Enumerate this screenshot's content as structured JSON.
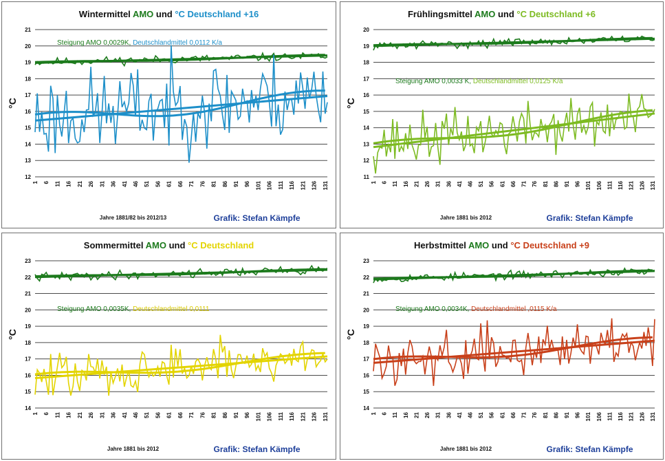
{
  "chart_data": [
    {
      "type": "line",
      "title_parts": [
        {
          "text": "Wintermittel ",
          "color": "#111111"
        },
        {
          "text": "AMO",
          "color": "#1c7a1c"
        },
        {
          "text": " und ",
          "color": "#111111"
        },
        {
          "text": "°C Deutschland +16",
          "color": "#1d8fc9"
        }
      ],
      "annotation_parts": [
        {
          "text": "Steigung AMO 0,0029K, ",
          "color": "#1c7a1c"
        },
        {
          "text": "Deutschlandmittel 0,0112 K/a",
          "color": "#1d8fc9"
        }
      ],
      "ylabel": "°C",
      "xlabel": "Jahre 1881/82 bis 2012/13",
      "credit": "Grafik: Stefan Kämpfe",
      "ylim": [
        12,
        21
      ],
      "yticks": [
        "12",
        "13",
        "14",
        "15",
        "16",
        "17",
        "18",
        "19",
        "20",
        "21"
      ],
      "xticks": [
        "1",
        "6",
        "11",
        "16",
        "21",
        "26",
        "31",
        "36",
        "41",
        "46",
        "51",
        "56",
        "61",
        "66",
        "71",
        "76",
        "81",
        "86",
        "91",
        "96",
        "101",
        "106",
        "111",
        "116",
        "121",
        "126",
        "131"
      ],
      "n": 132,
      "series": [
        {
          "role": "amo",
          "color": "#1c7a1c",
          "base": 19.0,
          "slope": 0.0029,
          "noise": 0.12,
          "seed": 11,
          "smooth_amp": 0.05
        },
        {
          "role": "de",
          "color": "#1d8fc9",
          "base": 15.6,
          "slope": 0.0112,
          "noise": 1.35,
          "seed": 23,
          "smooth_amp": 0.4
        }
      ]
    },
    {
      "type": "line",
      "title_parts": [
        {
          "text": "Frühlingsmittel ",
          "color": "#111111"
        },
        {
          "text": "AMO",
          "color": "#1c7a1c"
        },
        {
          "text": " und ",
          "color": "#111111"
        },
        {
          "text": "°C Deutschland +6",
          "color": "#7dbb22"
        }
      ],
      "annotation_parts": [
        {
          "text": "Steigung AMO 0,0033 K, ",
          "color": "#1c7a1c"
        },
        {
          "text": "Deutschlandmittel 0,0125 K/a",
          "color": "#7dbb22"
        }
      ],
      "ylabel": "°C",
      "xlabel": "Jahre 1881 bis 2012",
      "credit": "Grafik: Stefan Kämpfe",
      "ylim": [
        11,
        20
      ],
      "yticks": [
        "11",
        "12",
        "13",
        "14",
        "15",
        "16",
        "17",
        "18",
        "19",
        "20"
      ],
      "xticks": [
        "1",
        "6",
        "11",
        "16",
        "21",
        "26",
        "31",
        "36",
        "41",
        "46",
        "51",
        "56",
        "61",
        "66",
        "71",
        "76",
        "81",
        "86",
        "91",
        "96",
        "101",
        "106",
        "111",
        "116",
        "121",
        "126",
        "131"
      ],
      "n": 132,
      "series": [
        {
          "role": "amo",
          "color": "#1c7a1c",
          "base": 19.0,
          "slope": 0.0033,
          "noise": 0.12,
          "seed": 31,
          "smooth_amp": 0.05
        },
        {
          "role": "de",
          "color": "#7dbb22",
          "base": 13.0,
          "slope": 0.0125,
          "noise": 0.8,
          "seed": 37,
          "smooth_amp": 0.25
        }
      ]
    },
    {
      "type": "line",
      "title_parts": [
        {
          "text": "Sommermittel ",
          "color": "#111111"
        },
        {
          "text": "AMO",
          "color": "#1c7a1c"
        },
        {
          "text": " und ",
          "color": "#111111"
        },
        {
          "text": "°C Deutschland",
          "color": "#e3d400"
        }
      ],
      "annotation_parts": [
        {
          "text": "Steigung AMO 0,0035K, ",
          "color": "#1c7a1c"
        },
        {
          "text": "Deutschlandmittel 0,0111",
          "color": "#d6c800"
        }
      ],
      "ylabel": "°C",
      "xlabel": "Jahre 1881 bis 2012",
      "credit": "Grafik: Stefan Kämpfe",
      "ylim": [
        14,
        23
      ],
      "yticks": [
        "14",
        "15",
        "16",
        "17",
        "18",
        "19",
        "20",
        "21",
        "22",
        "23"
      ],
      "xticks": [
        "1",
        "6",
        "11",
        "16",
        "21",
        "26",
        "31",
        "36",
        "41",
        "46",
        "51",
        "56",
        "61",
        "66",
        "71",
        "76",
        "81",
        "86",
        "91",
        "96",
        "101",
        "106",
        "111",
        "116",
        "121",
        "126",
        "131"
      ],
      "n": 132,
      "series": [
        {
          "role": "amo",
          "color": "#1c7a1c",
          "base": 22.0,
          "slope": 0.0035,
          "noise": 0.13,
          "seed": 41,
          "smooth_amp": 0.05
        },
        {
          "role": "de",
          "color": "#e3d400",
          "base": 15.8,
          "slope": 0.0111,
          "noise": 0.7,
          "seed": 47,
          "smooth_amp": 0.25
        }
      ]
    },
    {
      "type": "line",
      "title_parts": [
        {
          "text": "Herbstmittel ",
          "color": "#111111"
        },
        {
          "text": "AMO",
          "color": "#1c7a1c"
        },
        {
          "text": " und ",
          "color": "#111111"
        },
        {
          "text": "°C Deutschland +9",
          "color": "#c8401a"
        }
      ],
      "annotation_parts": [
        {
          "text": "Steigung AMO 0,0034K, ",
          "color": "#1c7a1c"
        },
        {
          "text": "Deutschlandmittel ,0115 K/a",
          "color": "#c8401a"
        }
      ],
      "ylabel": "°C",
      "xlabel": "Jahre 1881 bis 2012",
      "credit": "Grafik: Stefan Kämpfe",
      "ylim": [
        14,
        23
      ],
      "yticks": [
        "14",
        "15",
        "16",
        "17",
        "18",
        "19",
        "20",
        "21",
        "22",
        "23"
      ],
      "xticks": [
        "1",
        "6",
        "11",
        "16",
        "21",
        "26",
        "31",
        "36",
        "41",
        "46",
        "51",
        "56",
        "61",
        "66",
        "71",
        "76",
        "81",
        "86",
        "91",
        "96",
        "101",
        "106",
        "111",
        "116",
        "121",
        "126",
        "131"
      ],
      "n": 132,
      "series": [
        {
          "role": "amo",
          "color": "#1c7a1c",
          "base": 21.9,
          "slope": 0.0034,
          "noise": 0.12,
          "seed": 53,
          "smooth_amp": 0.05
        },
        {
          "role": "de",
          "color": "#c8401a",
          "base": 16.8,
          "slope": 0.0115,
          "noise": 0.7,
          "seed": 59,
          "smooth_amp": 0.25
        }
      ]
    }
  ]
}
